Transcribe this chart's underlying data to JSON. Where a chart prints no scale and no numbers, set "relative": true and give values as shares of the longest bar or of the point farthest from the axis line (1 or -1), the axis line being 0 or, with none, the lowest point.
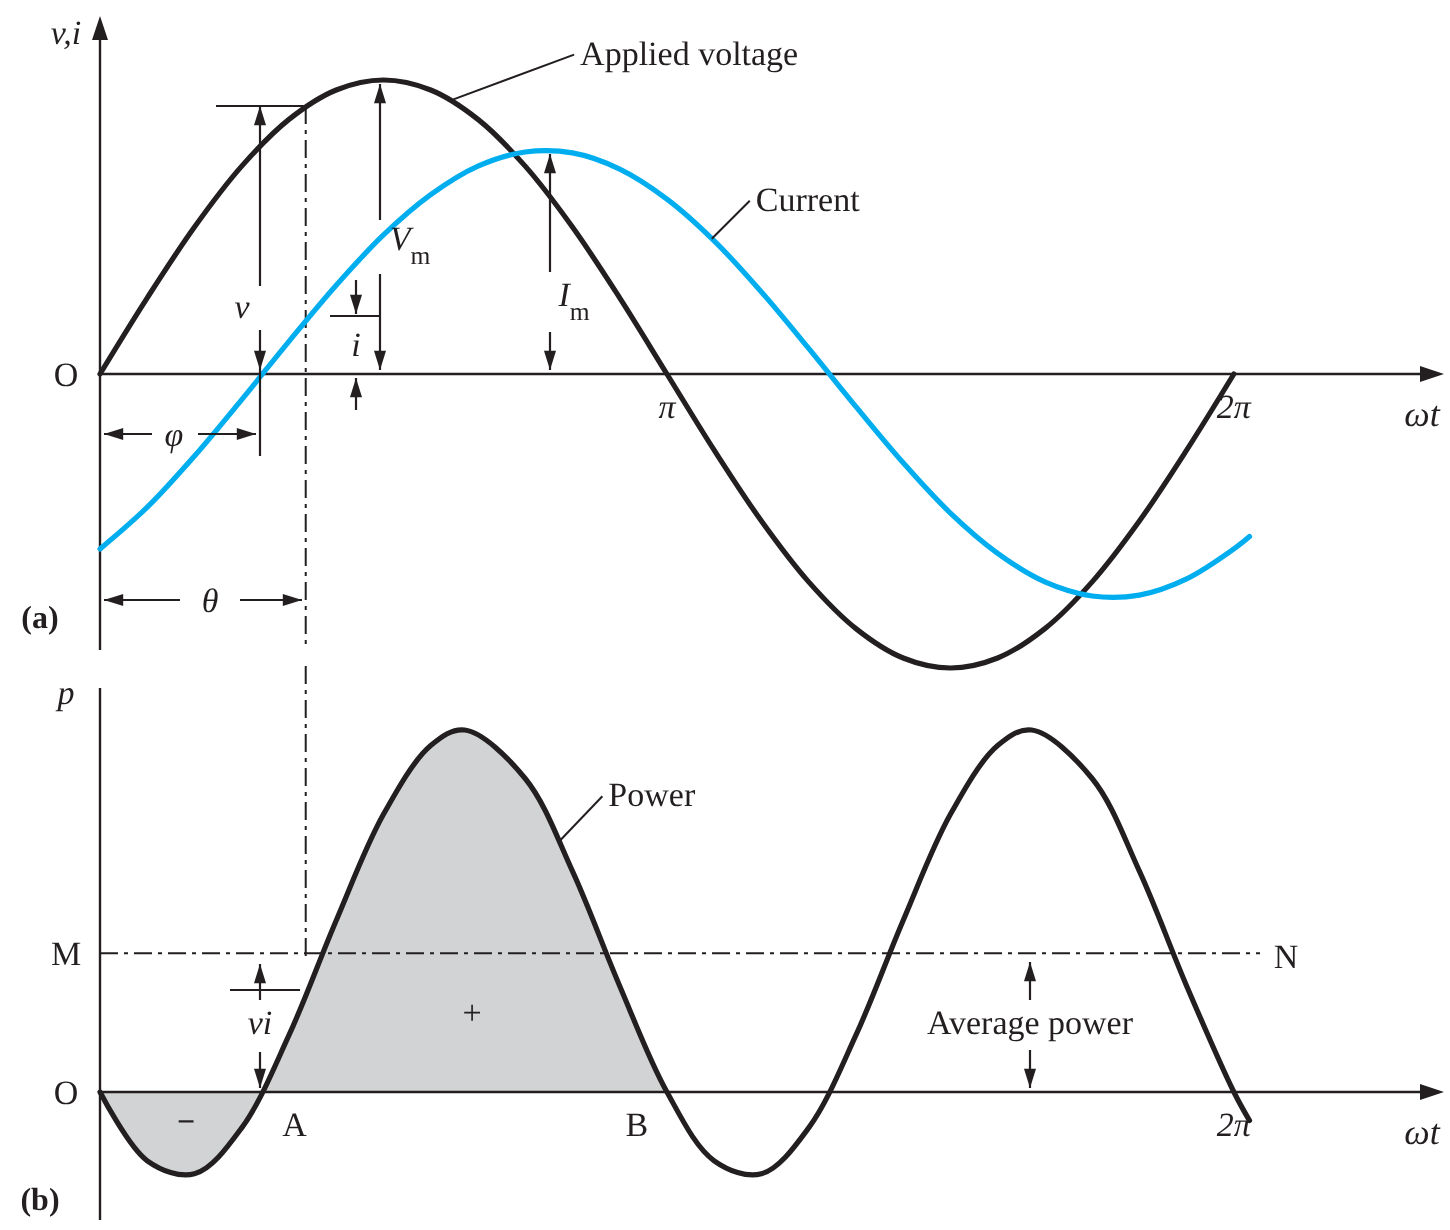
{
  "chart_data": [
    {
      "type": "line",
      "relative": true,
      "xlabel": "ωt",
      "ylabel": "v,i",
      "xlim": [
        0,
        7.37
      ],
      "xticks": [
        {
          "value": 3.1416,
          "label": "π"
        },
        {
          "value": 6.2832,
          "label": "2π"
        }
      ],
      "x": [
        0,
        0.2618,
        0.5236,
        0.7854,
        1.0472,
        1.309,
        1.5708,
        1.8326,
        2.0944,
        2.3562,
        2.618,
        2.8798,
        3.1416,
        3.4034,
        3.6652,
        3.927,
        4.1888,
        4.4506,
        4.7124,
        4.9742,
        5.236,
        5.4978,
        5.7596,
        6.0214,
        6.2832
      ],
      "series": [
        {
          "color": "#231f20",
          "values": [
            0,
            0.259,
            0.5,
            0.707,
            0.866,
            0.966,
            1,
            0.966,
            0.866,
            0.707,
            0.5,
            0.259,
            0,
            -0.259,
            -0.5,
            -0.707,
            -0.866,
            -0.966,
            -1,
            -0.966,
            -0.866,
            -0.707,
            -0.5,
            -0.259,
            0
          ]
        },
        {
          "color": "#00aeef",
          "x": [
            0,
            0.2618,
            0.5236,
            0.7854,
            1.0472,
            1.309,
            1.5708,
            1.8326,
            2.0944,
            2.3562,
            2.618,
            2.8798,
            3.1416,
            3.4034,
            3.6652,
            3.927,
            4.1888,
            4.4506,
            4.7124,
            4.9742,
            5.236,
            5.4978,
            5.7596,
            6.0214,
            6.2832,
            6.37
          ],
          "values": [
            -0.595,
            -0.453,
            -0.279,
            -0.087,
            0.111,
            0.302,
            0.473,
            0.61,
            0.707,
            0.755,
            0.752,
            0.697,
            0.595,
            0.453,
            0.279,
            0.087,
            -0.111,
            -0.302,
            -0.473,
            -0.61,
            -0.707,
            -0.755,
            -0.752,
            -0.697,
            -0.595,
            -0.553
          ]
        }
      ],
      "ref_lines": [
        {
          "axis": "x",
          "value": 1.14,
          "line_style": "dashed"
        }
      ],
      "annotations": [
        {
          "text": "O",
          "x": 0,
          "y": 0
        },
        {
          "text": "Applied voltage",
          "x": 1.94,
          "y": 0.93
        },
        {
          "text": "Current",
          "x": 3.39,
          "y": 0.46
        },
        "V$_{m}$",
        "I$_{m}$",
        "v",
        "i",
        "φ",
        "θ",
        "(a)"
      ]
    },
    {
      "type": "line",
      "relative": true,
      "xlabel": "ωt",
      "ylabel": "p",
      "xlim": [
        0,
        7.37
      ],
      "series": [
        {
          "type": "area",
          "color": "#d1d3d4",
          "x": [
            0,
            0.2618,
            0.5236,
            0.7854,
            1.0472,
            1.309,
            1.5708,
            1.8326,
            2.0208,
            2.3562,
            2.618,
            2.8798,
            3.1416
          ],
          "values": [
            0,
            -0.19,
            -0.226,
            -0.099,
            0.157,
            0.474,
            0.767,
            0.957,
            1,
            0.866,
            0.61,
            0.293,
            0
          ]
        },
        {
          "color": "#231f20",
          "x": [
            0,
            0.2618,
            0.5236,
            0.7854,
            1.0472,
            1.309,
            1.5708,
            1.8326,
            2.0208,
            2.3562,
            2.618,
            2.8798,
            3.1416,
            3.4034,
            3.6652,
            3.927,
            4.1888,
            4.4506,
            4.7124,
            4.9742,
            5.1624,
            5.4978,
            5.7596,
            6.0214,
            6.2832,
            6.37
          ],
          "values": [
            0,
            -0.19,
            -0.226,
            -0.099,
            0.157,
            0.474,
            0.767,
            0.957,
            1,
            0.866,
            0.61,
            0.293,
            0,
            -0.19,
            -0.226,
            -0.099,
            0.157,
            0.474,
            0.767,
            0.957,
            1,
            0.866,
            0.61,
            0.293,
            0,
            -0.079
          ]
        }
      ],
      "ref_lines": [
        {
          "axis": "y",
          "value": 0.383,
          "label": "M",
          "line_style": "dashed"
        },
        {
          "axis": "x",
          "value": 1.14,
          "line_style": "dashed"
        }
      ],
      "annotations": [
        {
          "text": "O",
          "x": 0,
          "y": 0
        },
        "N",
        {
          "text": "A",
          "x": 0.9,
          "y": 0
        },
        {
          "text": "B",
          "x": 3.1416,
          "y": 0
        },
        {
          "text": "2π",
          "x": 6.2832,
          "y": 0
        },
        {
          "text": "Power",
          "x": 2.54,
          "y": 0.69
        },
        "vi",
        "+",
        "−",
        "Average power",
        "(b)"
      ]
    }
  ]
}
